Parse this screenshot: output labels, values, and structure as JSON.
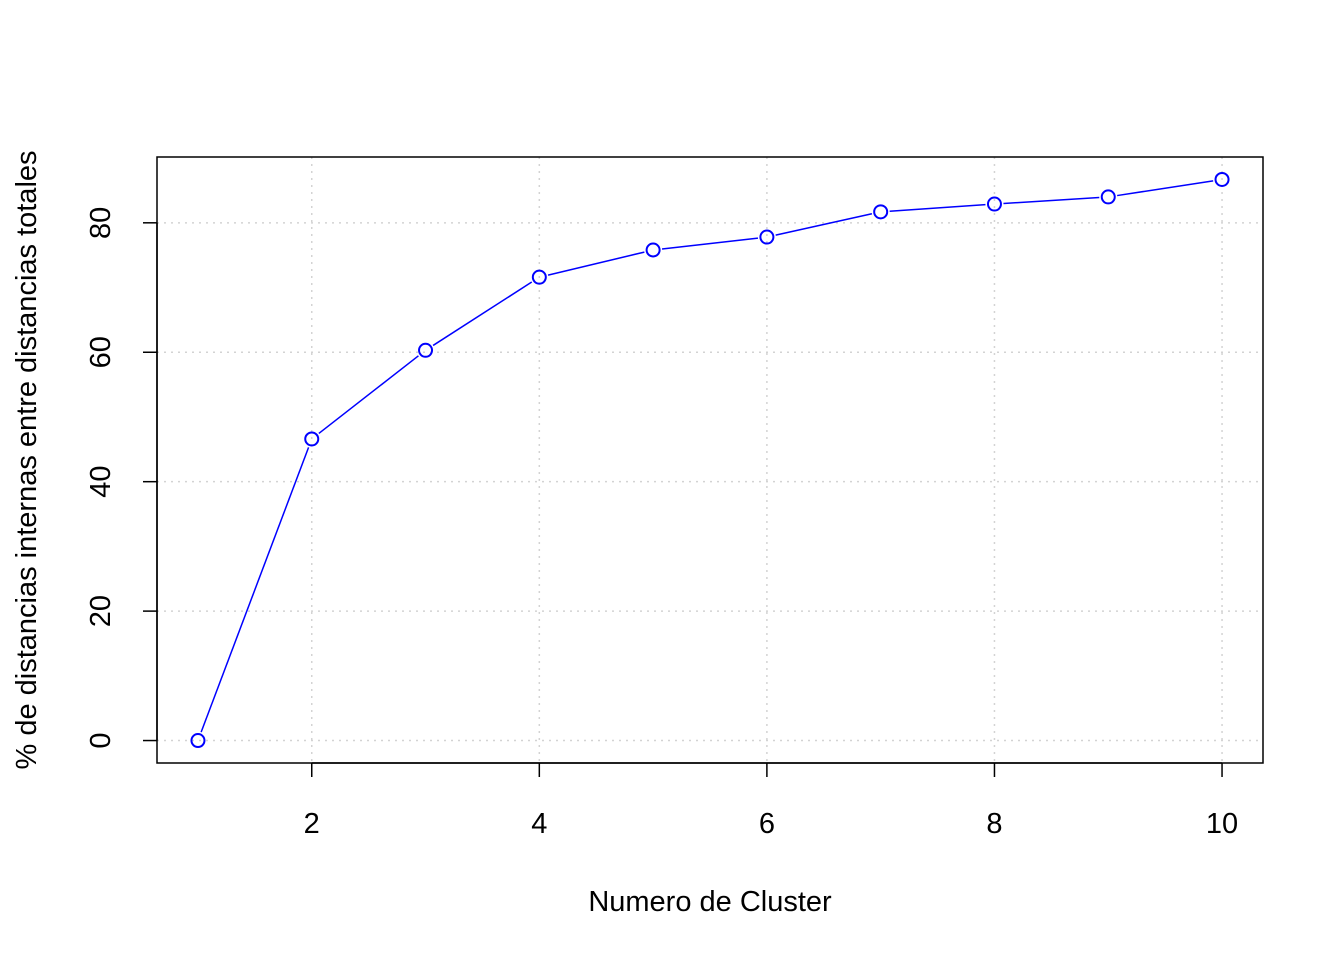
{
  "chart_data": {
    "type": "line",
    "title": "",
    "xlabel": "Numero de Cluster",
    "ylabel": "% de distancias internas entre distancias totales",
    "x": [
      1,
      2,
      3,
      4,
      5,
      6,
      7,
      8,
      9,
      10
    ],
    "series": [
      {
        "values": [
          0,
          46.6,
          60.3,
          71.6,
          75.8,
          77.8,
          81.7,
          82.9,
          84.0,
          86.7
        ],
        "color": "#0000ff",
        "marker": "open-circle"
      }
    ],
    "xlim": [
      0.64,
      10.36
    ],
    "ylim": [
      -3.47,
      90.17
    ],
    "xticks": [
      "2",
      "4",
      "6",
      "8",
      "10"
    ],
    "yticks": [
      "0",
      "20",
      "40",
      "60",
      "80"
    ],
    "grid": true
  }
}
